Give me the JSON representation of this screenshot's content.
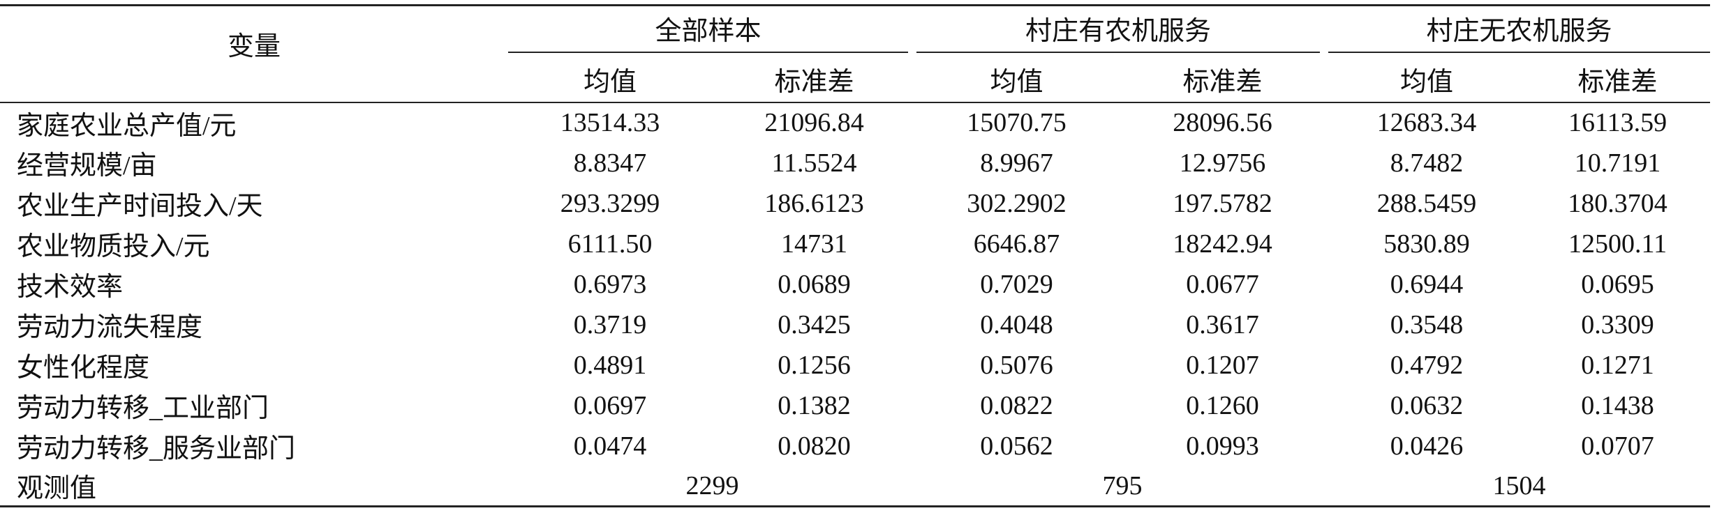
{
  "table": {
    "header": {
      "variable": "变量",
      "groups": [
        "全部样本",
        "村庄有农机服务",
        "村庄无农机服务"
      ],
      "subheaders": [
        "均值",
        "标准差",
        "均值",
        "标准差",
        "均值",
        "标准差"
      ]
    },
    "rows": [
      [
        "家庭农业总产值/元",
        "13514.33",
        "21096.84",
        "15070.75",
        "28096.56",
        "12683.34",
        "16113.59"
      ],
      [
        "经营规模/亩",
        "8.8347",
        "11.5524",
        "8.9967",
        "12.9756",
        "8.7482",
        "10.7191"
      ],
      [
        "农业生产时间投入/天",
        "293.3299",
        "186.6123",
        "302.2902",
        "197.5782",
        "288.5459",
        "180.3704"
      ],
      [
        "农业物质投入/元",
        "6111.50",
        "14731",
        "6646.87",
        "18242.94",
        "5830.89",
        "12500.11"
      ],
      [
        "技术效率",
        "0.6973",
        "0.0689",
        "0.7029",
        "0.0677",
        "0.6944",
        "0.0695"
      ],
      [
        "劳动力流失程度",
        "0.3719",
        "0.3425",
        "0.4048",
        "0.3617",
        "0.3548",
        "0.3309"
      ],
      [
        "女性化程度",
        "0.4891",
        "0.1256",
        "0.5076",
        "0.1207",
        "0.4792",
        "0.1271"
      ],
      [
        "劳动力转移_工业部门",
        "0.0697",
        "0.1382",
        "0.0822",
        "0.1260",
        "0.0632",
        "0.1438"
      ],
      [
        "劳动力转移_服务业部门",
        "0.0474",
        "0.0820",
        "0.0562",
        "0.0993",
        "0.0426",
        "0.0707"
      ]
    ],
    "observations": {
      "label": "观测值",
      "values": [
        "2299",
        "795",
        "1504"
      ]
    }
  }
}
